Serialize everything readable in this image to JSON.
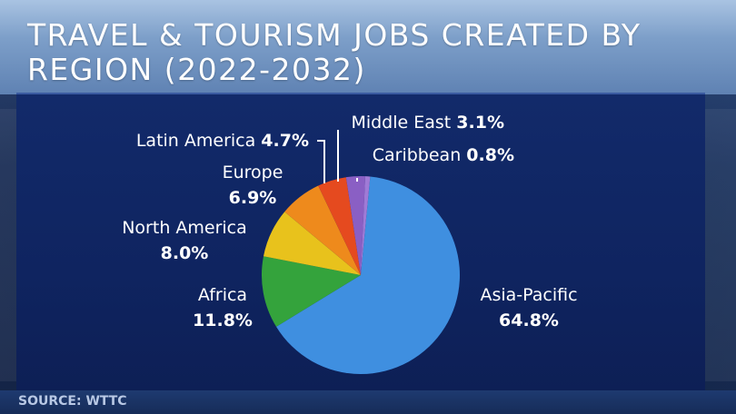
{
  "title": "TRAVEL & TOURISM JOBS CREATED BY REGION (2022-2032)",
  "source": "SOURCE: WTTC",
  "chart_data": {
    "type": "pie",
    "title": "TRAVEL & TOURISM JOBS CREATED BY REGION (2022-2032)",
    "slices": [
      {
        "label": "Asia-Pacific",
        "value": 64.8,
        "display": "64.8%",
        "color": "#3f8fe0"
      },
      {
        "label": "Africa",
        "value": 11.8,
        "display": "11.8%",
        "color": "#34a33c"
      },
      {
        "label": "North America",
        "value": 8.0,
        "display": "8.0%",
        "color": "#e8c21c"
      },
      {
        "label": "Europe",
        "value": 6.9,
        "display": "6.9%",
        "color": "#ee8a1c"
      },
      {
        "label": "Latin America",
        "value": 4.7,
        "display": "4.7%",
        "color": "#e54a1f"
      },
      {
        "label": "Middle East",
        "value": 3.1,
        "display": "3.1%",
        "color": "#8a5fc4"
      },
      {
        "label": "Caribbean",
        "value": 0.8,
        "display": "0.8%",
        "color": "#a07ad6"
      }
    ]
  }
}
